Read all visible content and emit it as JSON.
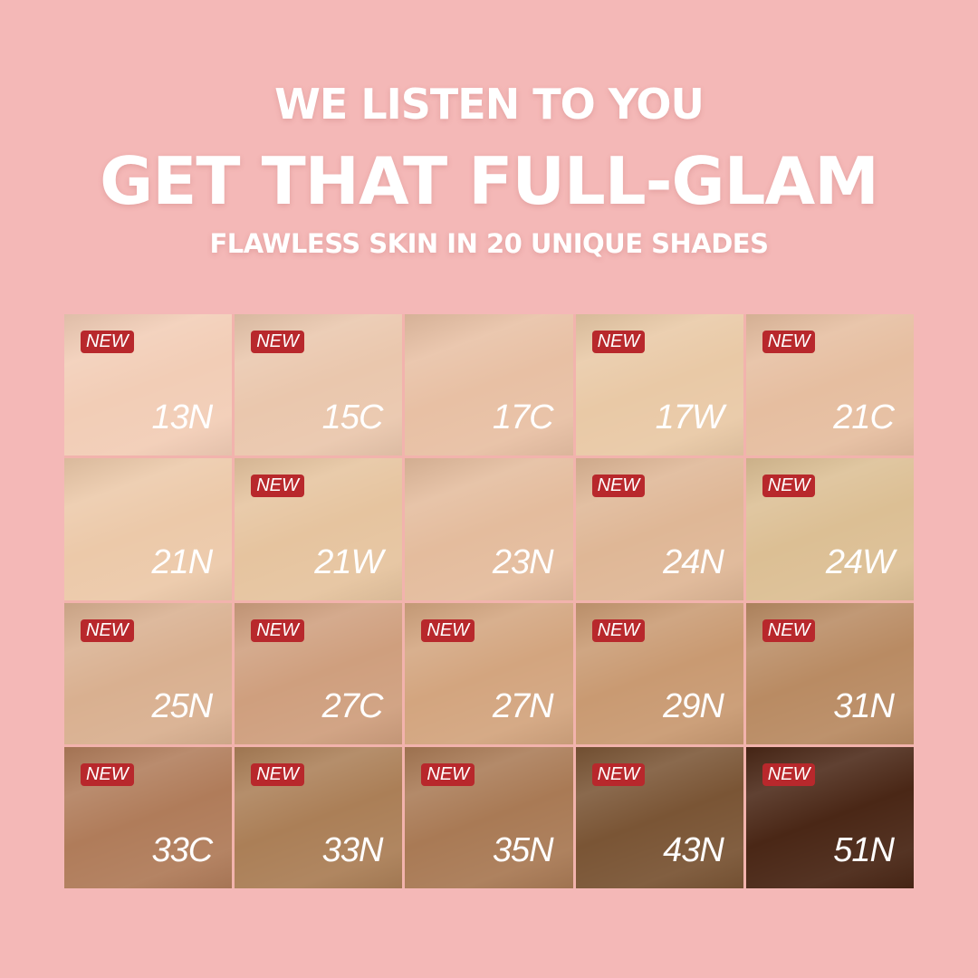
{
  "header": {
    "line1": "WE LISTEN TO YOU",
    "line2": "GET THAT FULL-GLAM",
    "line3": "FLAWLESS SKIN IN 20 UNIQUE SHADES"
  },
  "badge_label": "NEW",
  "badge_color": "#b8282c",
  "shades": [
    {
      "name": "13N",
      "new": true,
      "color": "#f2cdb6"
    },
    {
      "name": "15C",
      "new": true,
      "color": "#eac7ad"
    },
    {
      "name": "17C",
      "new": false,
      "color": "#e8c0a4"
    },
    {
      "name": "17W",
      "new": true,
      "color": "#e9c9a6"
    },
    {
      "name": "21C",
      "new": true,
      "color": "#e6bea0"
    },
    {
      "name": "21N",
      "new": false,
      "color": "#ecc9a9"
    },
    {
      "name": "21W",
      "new": true,
      "color": "#e6c49f"
    },
    {
      "name": "23N",
      "new": false,
      "color": "#e4bc9d"
    },
    {
      "name": "24N",
      "new": true,
      "color": "#dfb796"
    },
    {
      "name": "24W",
      "new": true,
      "color": "#dcbf94"
    },
    {
      "name": "25N",
      "new": true,
      "color": "#d9b090"
    },
    {
      "name": "27C",
      "new": true,
      "color": "#cf9f7e"
    },
    {
      "name": "27N",
      "new": true,
      "color": "#d3a57f"
    },
    {
      "name": "29N",
      "new": true,
      "color": "#c99a72"
    },
    {
      "name": "31N",
      "new": true,
      "color": "#b98b63"
    },
    {
      "name": "33C",
      "new": true,
      "color": "#b07c5a"
    },
    {
      "name": "33N",
      "new": true,
      "color": "#ab7f57"
    },
    {
      "name": "35N",
      "new": true,
      "color": "#a97a55"
    },
    {
      "name": "43N",
      "new": true,
      "color": "#7a5535"
    },
    {
      "name": "51N",
      "new": true,
      "color": "#4a2716"
    }
  ]
}
